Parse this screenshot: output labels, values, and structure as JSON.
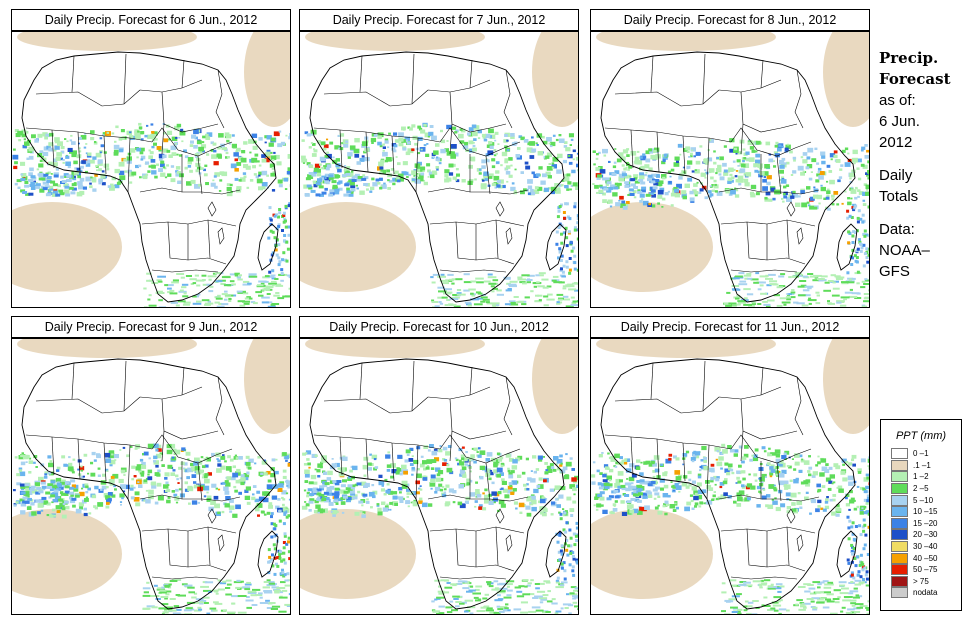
{
  "panels": [
    {
      "title": "Daily Precip. Forecast for  6 Jun., 2012"
    },
    {
      "title": "Daily Precip. Forecast for  7 Jun., 2012"
    },
    {
      "title": "Daily Precip. Forecast for  8 Jun., 2012"
    },
    {
      "title": "Daily Precip. Forecast for  9 Jun., 2012"
    },
    {
      "title": "Daily Precip. Forecast for  10 Jun., 2012"
    },
    {
      "title": "Daily Precip. Forecast for  11 Jun., 2012"
    }
  ],
  "side": {
    "title_line1": "Precip.",
    "title_line2": "Forecast",
    "asof_line1": "as of:",
    "asof_line2": "6 Jun.",
    "asof_line3": "2012",
    "daily_line1": "Daily",
    "daily_line2": "Totals",
    "data_line1": "Data:",
    "data_line2": "NOAA–",
    "data_line3": "GFS"
  },
  "legend": {
    "title": "PPT (mm)",
    "items": [
      {
        "label": "0 –1",
        "color": "#ffffff"
      },
      {
        "label": ".1 –1",
        "color": "#e8d7bd"
      },
      {
        "label": "1 –2",
        "color": "#b4f0b4"
      },
      {
        "label": "2 –5",
        "color": "#5fdc5a"
      },
      {
        "label": "5 –10",
        "color": "#a8d2f0"
      },
      {
        "label": "10 –15",
        "color": "#6ab4ee"
      },
      {
        "label": "15 –20",
        "color": "#3c82e6"
      },
      {
        "label": "20 –30",
        "color": "#1e50c8"
      },
      {
        "label": "30 –40",
        "color": "#f0dc64"
      },
      {
        "label": "40 –50",
        "color": "#f5a000"
      },
      {
        "label": "50 –75",
        "color": "#e61e00"
      },
      {
        "label": "> 75",
        "color": "#a01414"
      },
      {
        "label": "nodata",
        "color": "#cccccc"
      }
    ]
  }
}
